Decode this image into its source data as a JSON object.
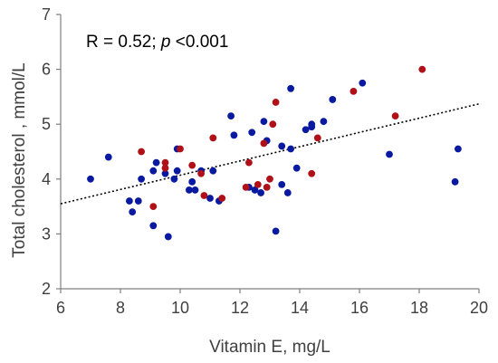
{
  "chart_data": {
    "type": "scatter",
    "title": "",
    "xlabel": "Vitamin E, mg/L",
    "ylabel": "Total cholesterol , mmol/L",
    "xlim": [
      6,
      20
    ],
    "ylim": [
      2,
      7
    ],
    "x_ticks": [
      "6",
      "8",
      "10",
      "12",
      "14",
      "16",
      "18",
      "20"
    ],
    "y_ticks": [
      "2",
      "3",
      "4",
      "5",
      "6",
      "7"
    ],
    "grid": false,
    "legend": "none",
    "annotation": {
      "prefix": "R = 0.52; ",
      "p_symbol": "p",
      "suffix": " <0.001"
    },
    "trendline": {
      "style": "dotted",
      "color": "#000000",
      "points": [
        [
          6,
          3.55
        ],
        [
          20,
          5.37
        ]
      ]
    },
    "series": [
      {
        "color": "#0a1aa0",
        "points": [
          [
            7.0,
            4.0
          ],
          [
            7.6,
            4.4
          ],
          [
            8.3,
            3.6
          ],
          [
            8.4,
            3.4
          ],
          [
            8.6,
            3.6
          ],
          [
            8.7,
            4.0
          ],
          [
            9.1,
            3.15
          ],
          [
            9.1,
            4.15
          ],
          [
            9.2,
            4.3
          ],
          [
            9.5,
            4.1
          ],
          [
            9.6,
            2.95
          ],
          [
            9.8,
            4.0
          ],
          [
            9.9,
            4.55
          ],
          [
            9.9,
            4.15
          ],
          [
            10.3,
            3.8
          ],
          [
            10.4,
            3.95
          ],
          [
            10.5,
            3.8
          ],
          [
            10.7,
            4.15
          ],
          [
            11.0,
            3.65
          ],
          [
            11.1,
            4.15
          ],
          [
            11.3,
            3.6
          ],
          [
            11.7,
            5.15
          ],
          [
            11.8,
            4.8
          ],
          [
            12.3,
            3.85
          ],
          [
            12.4,
            4.85
          ],
          [
            12.5,
            3.8
          ],
          [
            12.7,
            3.75
          ],
          [
            12.8,
            5.05
          ],
          [
            12.9,
            4.7
          ],
          [
            13.2,
            3.05
          ],
          [
            13.4,
            4.6
          ],
          [
            13.4,
            3.9
          ],
          [
            13.6,
            3.75
          ],
          [
            13.7,
            4.55
          ],
          [
            13.9,
            4.2
          ],
          [
            13.7,
            5.65
          ],
          [
            14.2,
            4.9
          ],
          [
            14.4,
            4.95
          ],
          [
            14.4,
            5.0
          ],
          [
            14.8,
            5.05
          ],
          [
            15.1,
            5.45
          ],
          [
            16.1,
            5.75
          ],
          [
            17.0,
            4.45
          ],
          [
            19.2,
            3.95
          ],
          [
            19.3,
            4.55
          ]
        ]
      },
      {
        "color": "#b01018",
        "points": [
          [
            8.7,
            4.5
          ],
          [
            9.1,
            3.5
          ],
          [
            9.5,
            4.2
          ],
          [
            9.5,
            4.3
          ],
          [
            10.0,
            4.55
          ],
          [
            10.4,
            4.25
          ],
          [
            10.7,
            4.1
          ],
          [
            10.8,
            3.7
          ],
          [
            11.1,
            4.75
          ],
          [
            11.4,
            3.65
          ],
          [
            12.2,
            3.85
          ],
          [
            12.3,
            4.3
          ],
          [
            12.6,
            3.9
          ],
          [
            12.8,
            4.65
          ],
          [
            12.9,
            3.85
          ],
          [
            13.0,
            4.0
          ],
          [
            13.1,
            5.0
          ],
          [
            13.2,
            5.4
          ],
          [
            14.4,
            4.1
          ],
          [
            14.6,
            4.75
          ],
          [
            15.8,
            5.6
          ],
          [
            17.2,
            5.15
          ],
          [
            18.1,
            6.0
          ]
        ]
      }
    ]
  }
}
